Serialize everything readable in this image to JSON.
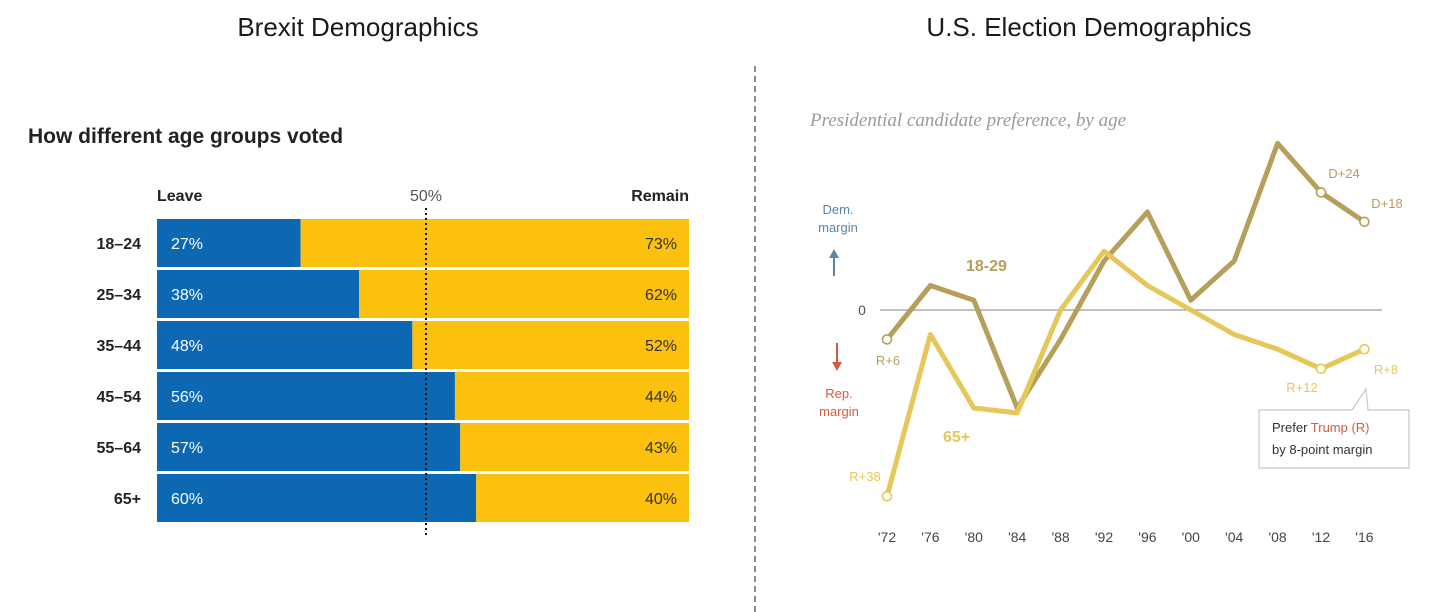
{
  "panels": {
    "brexit_title": "Brexit Demographics",
    "us_title": "U.S. Election Demographics"
  },
  "colors": {
    "leave": "#0d68b3",
    "remain": "#fcc00f",
    "line_18_29": "#b69e5b",
    "line_65_plus": "#e6c759",
    "rep_red": "#d65a3f",
    "dem_blue": "#5a86a8",
    "zero_line": "#9a9a9a"
  },
  "chart_data": [
    {
      "type": "bar",
      "stacked": true,
      "orientation": "horizontal",
      "title": "How different age groups voted",
      "left_header": "Leave",
      "right_header": "Remain",
      "reference_label": "50%",
      "reference_value": 50,
      "xlim": [
        0,
        100
      ],
      "categories": [
        "18–24",
        "25–34",
        "35–44",
        "45–54",
        "55–64",
        "65+"
      ],
      "series": [
        {
          "name": "Leave",
          "values": [
            27,
            38,
            48,
            56,
            57,
            60
          ],
          "labels": [
            "27%",
            "38%",
            "48%",
            "56%",
            "57%",
            "60%"
          ]
        },
        {
          "name": "Remain",
          "values": [
            73,
            62,
            52,
            44,
            43,
            40
          ],
          "labels": [
            "73%",
            "62%",
            "52%",
            "44%",
            "43%",
            "40%"
          ]
        }
      ]
    },
    {
      "type": "line",
      "title": "Presidential candidate preference, by age",
      "x": [
        "'72",
        "'76",
        "'80",
        "'84",
        "'88",
        "'92",
        "'96",
        "'00",
        "'04",
        "'08",
        "'12",
        "'16"
      ],
      "ylim": [
        -40,
        40
      ],
      "zero_label": "0",
      "dem_label": "Dem. margin",
      "rep_label": "Rep. margin",
      "series": [
        {
          "name": "18-29",
          "values": [
            -6,
            5,
            2,
            -20,
            -6,
            10,
            20,
            2,
            10,
            34,
            24,
            18
          ]
        },
        {
          "name": "65+",
          "values": [
            -38,
            -5,
            -20,
            -21,
            0,
            12,
            5,
            0,
            -5,
            -8,
            -12,
            -8
          ]
        }
      ],
      "annotations": {
        "start_18_29": "R+6",
        "start_65": "R+38",
        "end_18_29_2012": "D+24",
        "end_18_29_2016": "D+18",
        "end_65_2012": "R+12",
        "end_65_2016": "R+8",
        "callout_prefix": "Prefer ",
        "callout_highlight": "Trump (R)",
        "callout_line2": "by 8-point margin"
      }
    }
  ]
}
